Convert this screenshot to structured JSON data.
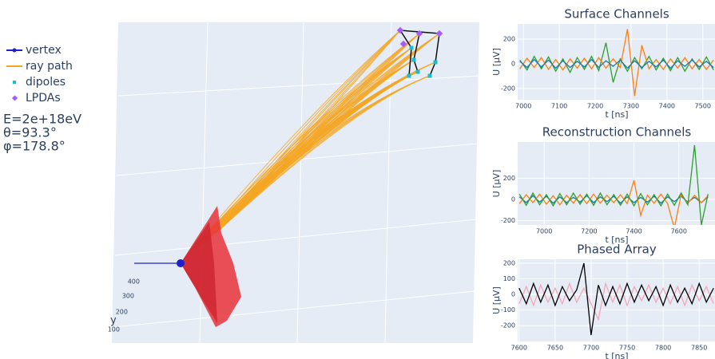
{
  "chart_data": [
    {
      "type": "scatter3d",
      "series": [
        {
          "name": "vertex",
          "color": "#1f1fcc"
        },
        {
          "name": "ray path",
          "color": "#f5a623"
        },
        {
          "name": "dipoles",
          "color": "#17becf"
        },
        {
          "name": "LPDAs",
          "color": "#a55cff"
        }
      ],
      "annotations": [
        "E=2e+18eV",
        "θ=93.3°",
        "φ=178.8°"
      ],
      "ylabel": "y",
      "yticks": [
        400,
        300,
        200,
        100
      ]
    },
    {
      "type": "line",
      "title": "Surface Channels",
      "xlabel": "t [ns]",
      "ylabel": "U [μV]",
      "xlim": [
        6984,
        7534
      ],
      "ylim": [
        -290,
        322
      ],
      "xticks": [
        7000,
        7100,
        7200,
        7300,
        7400,
        7500
      ],
      "yticks": [
        -200,
        0,
        200
      ],
      "grid": true,
      "x": [
        6990,
        7010,
        7030,
        7050,
        7070,
        7090,
        7110,
        7130,
        7150,
        7170,
        7190,
        7210,
        7230,
        7250,
        7270,
        7290,
        7310,
        7330,
        7350,
        7370,
        7390,
        7410,
        7430,
        7450,
        7470,
        7490,
        7510,
        7530
      ],
      "series": [
        {
          "color": "#2ca02c",
          "values": [
            30,
            -50,
            60,
            -40,
            55,
            -60,
            40,
            -70,
            50,
            -45,
            60,
            -55,
            170,
            -150,
            40,
            -60,
            50,
            -40,
            60,
            -50,
            45,
            -55,
            50,
            -60,
            40,
            -45,
            55,
            -50
          ]
        },
        {
          "color": "#ff7f0e",
          "values": [
            -40,
            45,
            -30,
            50,
            -45,
            35,
            -50,
            40,
            -35,
            45,
            -40,
            50,
            -35,
            40,
            -30,
            280,
            -260,
            150,
            -40,
            35,
            -45,
            40,
            -35,
            50,
            -40,
            35,
            -45,
            30
          ]
        },
        {
          "color": "#1f77b4",
          "values": [
            20,
            -30,
            35,
            -25,
            30,
            -35,
            25,
            -30,
            20,
            -25,
            35,
            -30,
            25,
            -20,
            30,
            -35,
            25,
            -30,
            20,
            -25,
            30,
            -35,
            25,
            -20,
            30,
            -25,
            20,
            -30
          ]
        }
      ]
    },
    {
      "type": "line",
      "title": "Reconstruction Channels",
      "xlabel": "t [ns]",
      "ylabel": "U [μV]",
      "xlim": [
        6882,
        7761
      ],
      "ylim": [
        -240,
        540
      ],
      "xticks": [
        7000,
        7200,
        7400,
        7600
      ],
      "yticks": [
        -200,
        0,
        200
      ],
      "grid": true,
      "x": [
        6890,
        6920,
        6950,
        6980,
        7010,
        7040,
        7070,
        7100,
        7130,
        7160,
        7190,
        7220,
        7250,
        7280,
        7310,
        7340,
        7370,
        7400,
        7430,
        7460,
        7490,
        7520,
        7550,
        7580,
        7610,
        7640,
        7670,
        7700,
        7730
      ],
      "series": [
        {
          "color": "#1f77b4",
          "values": [
            25,
            -30,
            35,
            -25,
            30,
            -35,
            25,
            -30,
            20,
            -25,
            35,
            -30,
            25,
            -20,
            30,
            -35,
            25,
            -30,
            20,
            -25,
            30,
            -35,
            25,
            -20,
            30,
            -25,
            20,
            -30,
            25
          ]
        },
        {
          "color": "#ff7f0e",
          "values": [
            -40,
            45,
            -30,
            50,
            -45,
            35,
            -50,
            40,
            -35,
            45,
            -40,
            50,
            -35,
            40,
            -30,
            45,
            -40,
            180,
            -150,
            40,
            -35,
            50,
            -40,
            -270,
            45,
            -35,
            40,
            -30,
            35
          ]
        },
        {
          "color": "#2ca02c",
          "values": [
            50,
            -55,
            60,
            -50,
            45,
            -60,
            55,
            -50,
            60,
            -45,
            50,
            -55,
            60,
            -50,
            45,
            -55,
            50,
            -60,
            55,
            -50,
            45,
            -60,
            50,
            -55,
            60,
            -50,
            510,
            -240,
            50
          ]
        }
      ]
    },
    {
      "type": "line",
      "title": "Phased Array",
      "xlabel": "t [ns]",
      "ylabel": "U [μV]",
      "xlim": [
        7598,
        7872
      ],
      "ylim": [
        -301,
        225
      ],
      "xticks": [
        7600,
        7650,
        7700,
        7750,
        7800,
        7850
      ],
      "yticks": [
        -200,
        -100,
        0,
        100,
        200
      ],
      "grid": true,
      "x": [
        7600,
        7610,
        7620,
        7630,
        7640,
        7650,
        7660,
        7670,
        7680,
        7690,
        7700,
        7710,
        7720,
        7730,
        7740,
        7750,
        7760,
        7770,
        7780,
        7790,
        7800,
        7810,
        7820,
        7830,
        7840,
        7850,
        7860,
        7870
      ],
      "series": [
        {
          "color": "#f4a6b8",
          "values": [
            -60,
            50,
            -70,
            60,
            -50,
            40,
            -60,
            70,
            -50,
            40,
            -60,
            -160,
            70,
            -50,
            60,
            -70,
            50,
            -40,
            60,
            -50,
            40,
            -60,
            50,
            -70,
            60,
            -40,
            50,
            -60
          ]
        },
        {
          "color": "#000000",
          "values": [
            40,
            -60,
            70,
            -50,
            60,
            -70,
            50,
            -40,
            30,
            200,
            -260,
            60,
            -70,
            50,
            -60,
            70,
            -50,
            60,
            -40,
            50,
            -70,
            60,
            -50,
            40,
            -60,
            70,
            -50,
            40
          ]
        }
      ]
    }
  ]
}
